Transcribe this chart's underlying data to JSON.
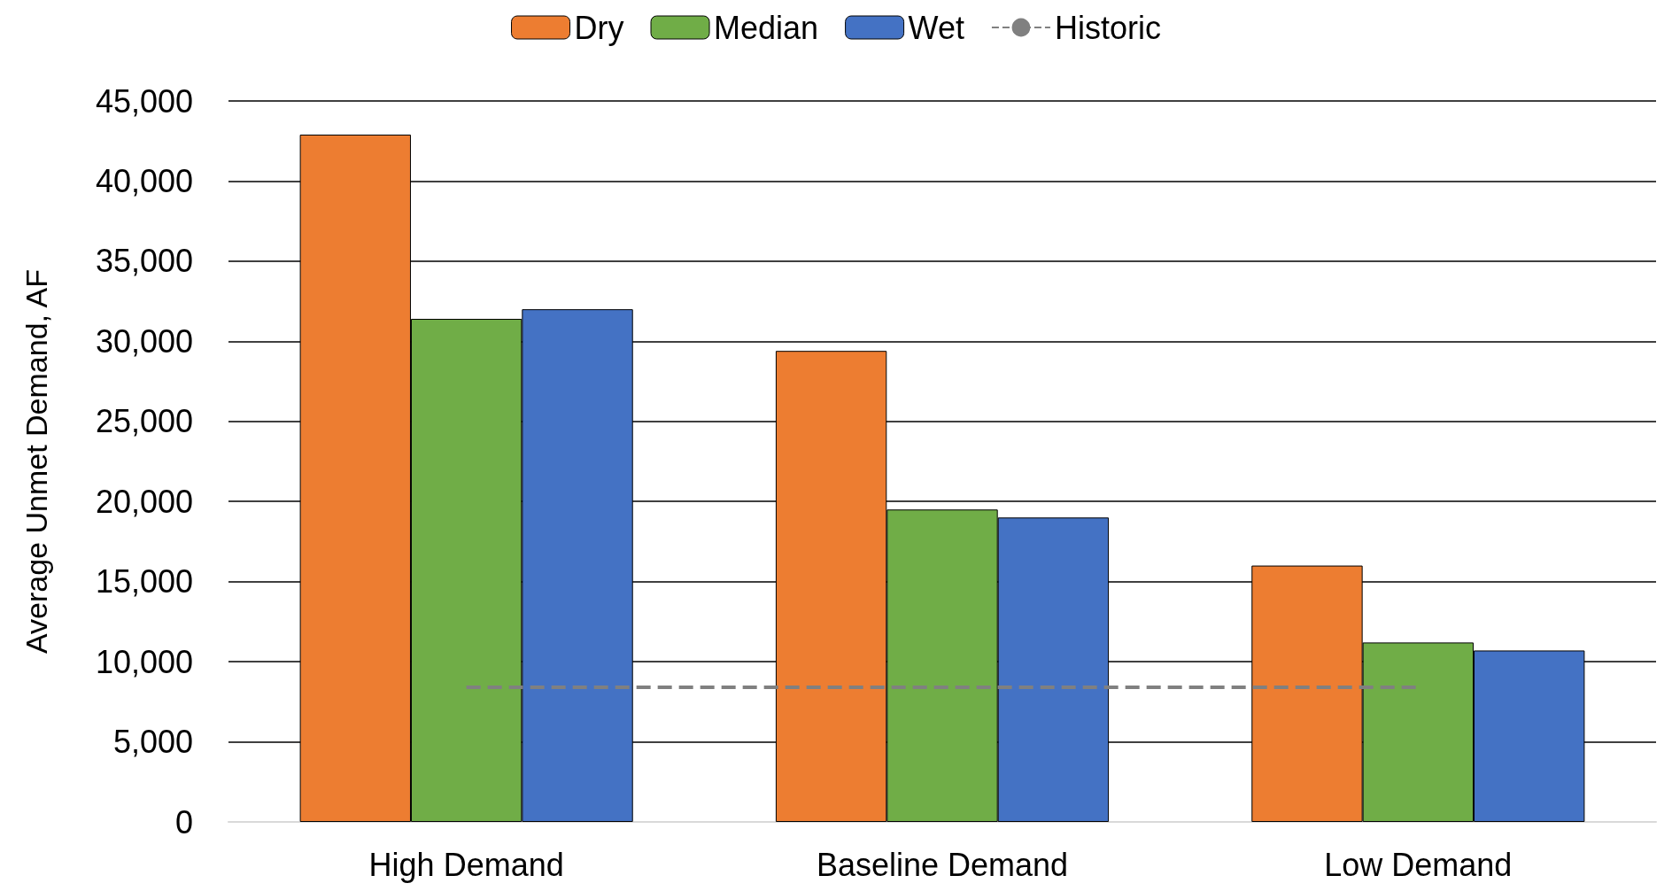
{
  "chart_data": {
    "type": "bar",
    "ylabel": "Average Unmet Demand, AF",
    "categories": [
      "High Demand",
      "Baseline Demand",
      "Low Demand"
    ],
    "series": [
      {
        "name": "Dry",
        "color": "#ed7d31",
        "values": [
          42900,
          29400,
          16000
        ]
      },
      {
        "name": "Median",
        "color": "#70ad47",
        "values": [
          31400,
          19500,
          11200
        ]
      },
      {
        "name": "Wet",
        "color": "#4472c4",
        "values": [
          32000,
          19000,
          10700
        ]
      },
      {
        "name": "Historic",
        "type": "line",
        "color": "#808080",
        "line_style": "dashed",
        "values": [
          8400,
          8400,
          8400
        ]
      }
    ],
    "ylim": [
      0,
      45000
    ],
    "yticks": [
      0,
      {
        "value": 5000,
        "label": "5,000"
      },
      {
        "value": 10000,
        "label": "10,000"
      },
      {
        "value": 15000,
        "label": "15,000"
      },
      {
        "value": 20000,
        "label": "20,000"
      },
      {
        "value": 25000,
        "label": "25,000"
      },
      {
        "value": 30000,
        "label": "30,000"
      },
      {
        "value": 35000,
        "label": "35,000"
      },
      {
        "value": 40000,
        "label": "40,000"
      },
      {
        "value": 45000,
        "label": "45,000"
      }
    ],
    "grid": "y",
    "legend": "top"
  }
}
